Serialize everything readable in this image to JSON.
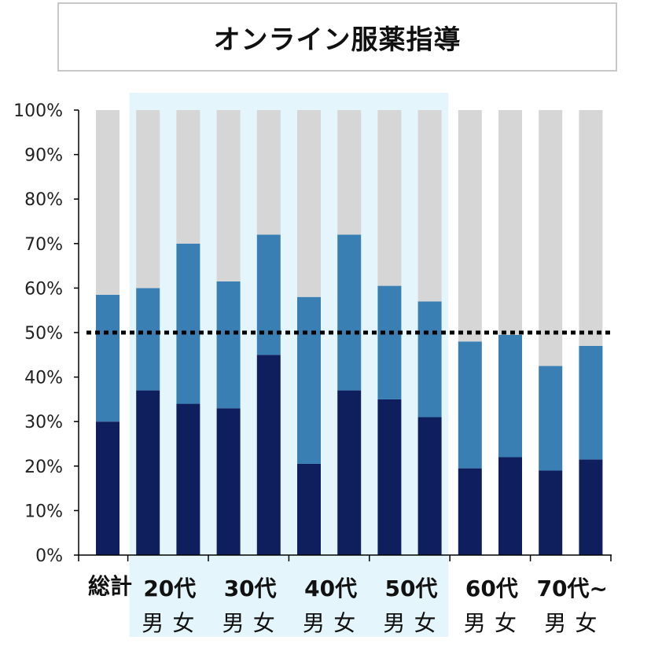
{
  "chart_data": {
    "type": "bar",
    "stacked": true,
    "percent_stacked": true,
    "title": "オンライン服薬指導",
    "ylim": [
      0,
      100
    ],
    "yticks": [
      "0%",
      "10%",
      "20%",
      "30%",
      "40%",
      "50%",
      "60%",
      "70%",
      "80%",
      "90%",
      "100%"
    ],
    "reference_line": {
      "value": 50,
      "style": "dotted",
      "color": "#000000"
    },
    "highlight_range": {
      "from_category": "20代 男",
      "to_category": "50代 女",
      "color": "#e4f6fb"
    },
    "group_labels": [
      "総計",
      "20代",
      "30代",
      "40代",
      "50代",
      "60代",
      "70代~"
    ],
    "sub_labels": [
      "男",
      "女"
    ],
    "categories": [
      "総計",
      "20代 男",
      "20代 女",
      "30代 男",
      "30代 女",
      "40代 男",
      "40代 女",
      "50代 男",
      "50代 女",
      "60代 男",
      "60代 女",
      "70代~ 男",
      "70代~ 女"
    ],
    "series": [
      {
        "color": "#0f1f5e",
        "values": [
          30,
          37,
          34,
          33,
          45,
          20.5,
          37,
          35,
          31,
          19.5,
          22,
          19,
          21.5
        ]
      },
      {
        "color": "#3a7fb4",
        "values": [
          28.5,
          23,
          36,
          28.5,
          27,
          37.5,
          35,
          25.5,
          26,
          28.5,
          27.5,
          23.5,
          25.5
        ]
      },
      {
        "color": "#d6d6d6",
        "values": [
          41.5,
          40,
          30,
          38.5,
          28,
          42,
          28,
          39.5,
          43,
          52,
          50.5,
          57.5,
          53
        ]
      }
    ],
    "grid": false,
    "legend": "none"
  }
}
